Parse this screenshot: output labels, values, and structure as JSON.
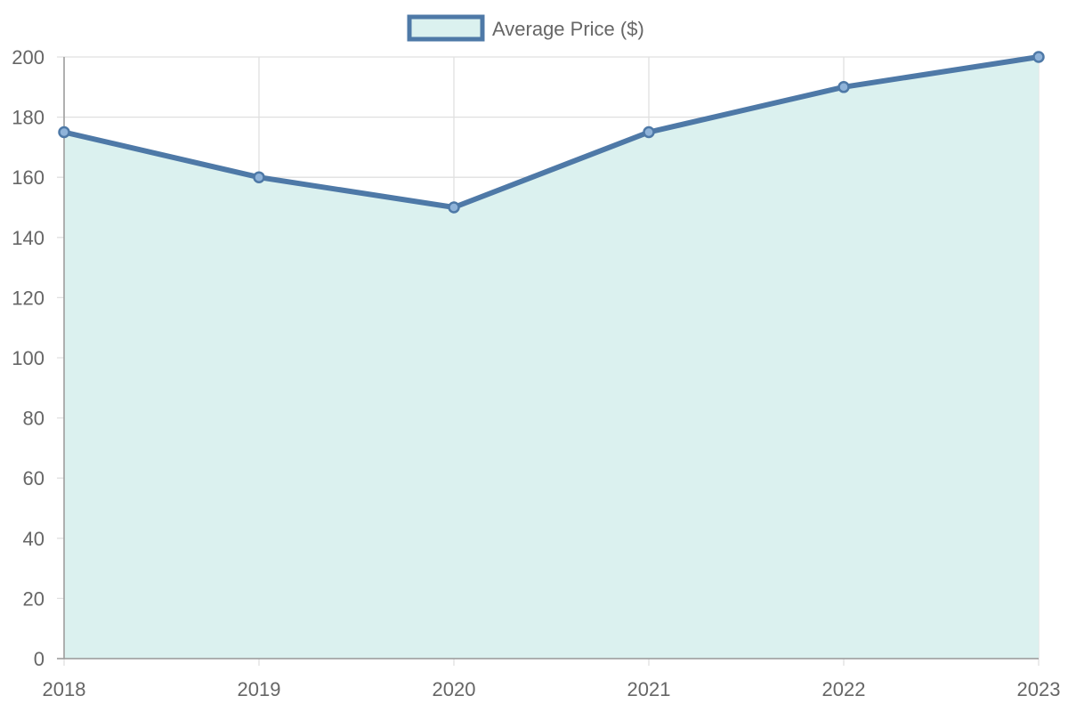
{
  "chart_data": {
    "type": "area",
    "categories": [
      "2018",
      "2019",
      "2020",
      "2021",
      "2022",
      "2023"
    ],
    "series": [
      {
        "name": "Average Price ($)",
        "values": [
          175,
          160,
          150,
          175,
          190,
          200
        ]
      }
    ],
    "ylim": [
      0,
      200
    ],
    "yticks": [
      0,
      20,
      40,
      60,
      80,
      100,
      120,
      140,
      160,
      180,
      200
    ],
    "grid": true,
    "legend_position": "top-center",
    "colors": {
      "line": "#4e79a7",
      "fill": "#dbf1ef",
      "grid": "#e0e0e0",
      "axis": "#999999",
      "text": "#666666"
    }
  }
}
